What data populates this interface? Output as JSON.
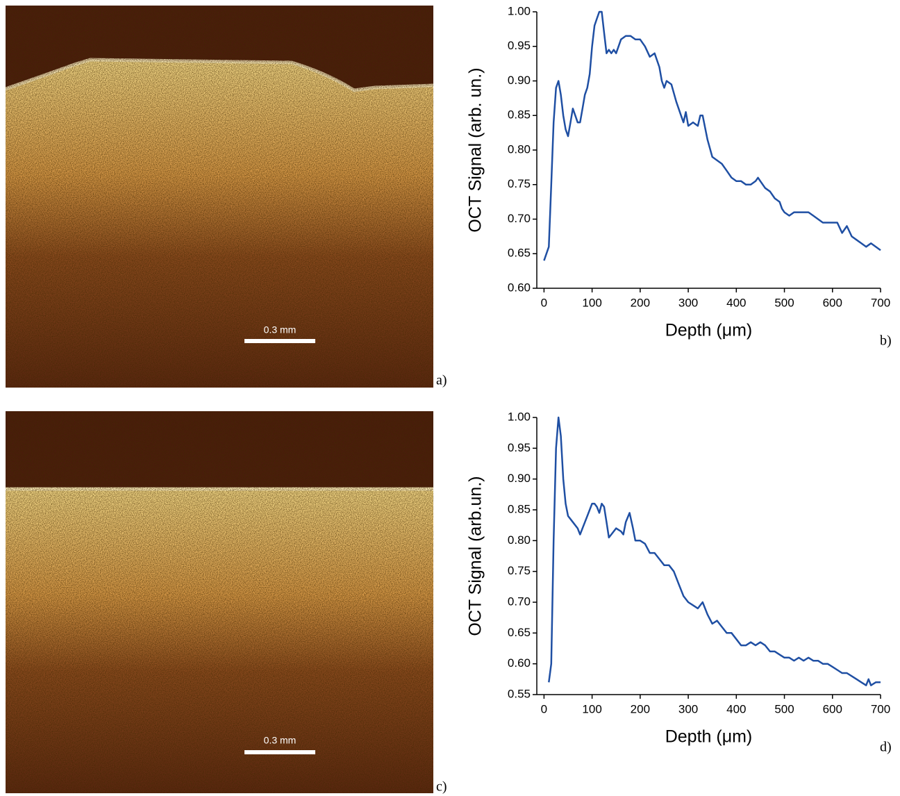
{
  "images": [
    {
      "scale_bar": "0.3 mm",
      "label": "a)"
    },
    {
      "scale_bar": "0.3 mm",
      "label": "c)"
    }
  ],
  "chart_data": [
    {
      "type": "line",
      "label": "b)",
      "xlabel": "Depth (μm)",
      "ylabel": "OCT Signal (arb. un.)",
      "color": "#1f4fa3",
      "xlim": [
        -15,
        700
      ],
      "xticks": [
        0,
        100,
        200,
        300,
        400,
        500,
        600,
        700
      ],
      "ylim": [
        0.6,
        1.0
      ],
      "yticks": [
        {
          "value": 0.6,
          "label": "0.60"
        },
        0.65,
        {
          "value": 0.7,
          "label": "0.70"
        },
        0.75,
        {
          "value": 0.8,
          "label": "0.80"
        },
        0.85,
        {
          "value": 0.9,
          "label": "0.90"
        },
        0.95,
        {
          "value": 1.0,
          "label": "1.00"
        }
      ],
      "x": [
        0,
        10,
        15,
        20,
        25,
        30,
        35,
        40,
        45,
        50,
        55,
        60,
        65,
        70,
        75,
        80,
        85,
        90,
        95,
        100,
        105,
        110,
        115,
        120,
        125,
        130,
        135,
        140,
        145,
        150,
        155,
        160,
        170,
        180,
        190,
        200,
        210,
        220,
        230,
        240,
        245,
        250,
        255,
        265,
        275,
        285,
        290,
        295,
        300,
        310,
        320,
        325,
        330,
        340,
        350,
        360,
        370,
        380,
        390,
        400,
        410,
        420,
        430,
        440,
        445,
        450,
        460,
        470,
        480,
        490,
        495,
        500,
        510,
        520,
        530,
        540,
        550,
        560,
        570,
        580,
        590,
        600,
        610,
        620,
        630,
        640,
        650,
        660,
        670,
        680,
        690,
        700
      ],
      "values": [
        0.64,
        0.66,
        0.75,
        0.84,
        0.89,
        0.9,
        0.88,
        0.85,
        0.83,
        0.82,
        0.84,
        0.86,
        0.85,
        0.84,
        0.84,
        0.86,
        0.88,
        0.89,
        0.91,
        0.95,
        0.98,
        0.99,
        1.0,
        1.0,
        0.97,
        0.94,
        0.945,
        0.94,
        0.945,
        0.94,
        0.95,
        0.96,
        0.965,
        0.965,
        0.96,
        0.96,
        0.95,
        0.935,
        0.94,
        0.92,
        0.9,
        0.89,
        0.9,
        0.895,
        0.87,
        0.85,
        0.84,
        0.855,
        0.835,
        0.84,
        0.835,
        0.85,
        0.85,
        0.815,
        0.79,
        0.785,
        0.78,
        0.77,
        0.76,
        0.755,
        0.755,
        0.75,
        0.75,
        0.755,
        0.76,
        0.755,
        0.745,
        0.74,
        0.73,
        0.725,
        0.715,
        0.71,
        0.705,
        0.71,
        0.71,
        0.71,
        0.71,
        0.705,
        0.7,
        0.695,
        0.695,
        0.695,
        0.695,
        0.68,
        0.69,
        0.675,
        0.67,
        0.665,
        0.66,
        0.665,
        0.66,
        0.655
      ]
    },
    {
      "type": "line",
      "label": "d)",
      "xlabel": "Depth (μm)",
      "ylabel": "OCT Signal (arb.un.)",
      "color": "#1f4fa3",
      "xlim": [
        -15,
        700
      ],
      "xticks": [
        0,
        100,
        200,
        300,
        400,
        500,
        600,
        700
      ],
      "ylim": [
        0.55,
        1.0
      ],
      "yticks": [
        0.55,
        {
          "value": 0.6,
          "label": "0.60"
        },
        0.65,
        {
          "value": 0.7,
          "label": "0.70"
        },
        0.75,
        {
          "value": 0.8,
          "label": "0.80"
        },
        0.85,
        {
          "value": 0.9,
          "label": "0.90"
        },
        0.95,
        {
          "value": 1.0,
          "label": "1.00"
        }
      ],
      "x": [
        10,
        15,
        20,
        25,
        30,
        35,
        40,
        45,
        50,
        55,
        60,
        70,
        75,
        80,
        90,
        100,
        105,
        110,
        115,
        120,
        125,
        130,
        135,
        140,
        150,
        160,
        165,
        170,
        178,
        185,
        190,
        200,
        210,
        220,
        230,
        240,
        250,
        260,
        270,
        280,
        290,
        300,
        310,
        320,
        330,
        340,
        350,
        360,
        370,
        380,
        390,
        400,
        410,
        420,
        430,
        440,
        450,
        460,
        470,
        480,
        490,
        500,
        510,
        520,
        530,
        540,
        550,
        560,
        570,
        580,
        590,
        600,
        610,
        620,
        630,
        640,
        650,
        660,
        670,
        675,
        680,
        690,
        700
      ],
      "values": [
        0.57,
        0.6,
        0.8,
        0.95,
        1.0,
        0.97,
        0.9,
        0.86,
        0.84,
        0.835,
        0.83,
        0.82,
        0.81,
        0.82,
        0.84,
        0.86,
        0.86,
        0.855,
        0.845,
        0.86,
        0.855,
        0.83,
        0.805,
        0.81,
        0.82,
        0.815,
        0.81,
        0.83,
        0.845,
        0.82,
        0.8,
        0.8,
        0.795,
        0.78,
        0.78,
        0.77,
        0.76,
        0.76,
        0.75,
        0.73,
        0.71,
        0.7,
        0.695,
        0.69,
        0.7,
        0.68,
        0.665,
        0.67,
        0.66,
        0.65,
        0.65,
        0.64,
        0.63,
        0.63,
        0.635,
        0.63,
        0.635,
        0.63,
        0.62,
        0.62,
        0.615,
        0.61,
        0.61,
        0.605,
        0.61,
        0.605,
        0.61,
        0.605,
        0.605,
        0.6,
        0.6,
        0.595,
        0.59,
        0.585,
        0.585,
        0.58,
        0.575,
        0.57,
        0.565,
        0.575,
        0.565,
        0.57,
        0.57
      ]
    }
  ]
}
